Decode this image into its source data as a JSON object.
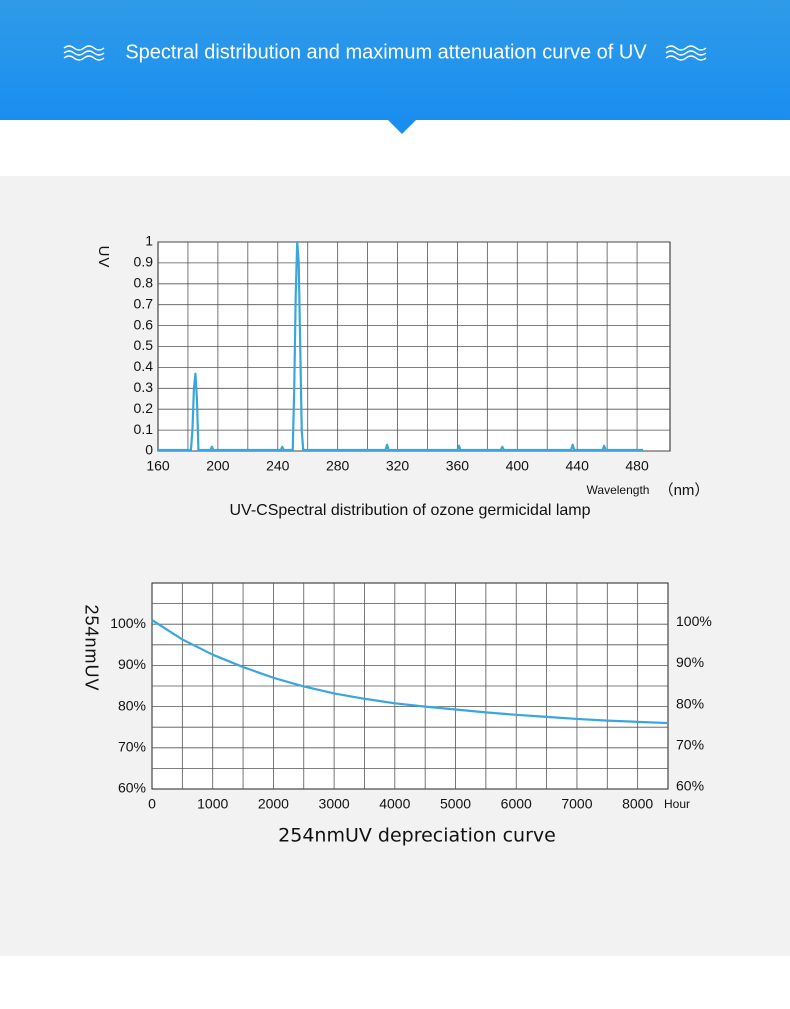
{
  "header": {
    "title": "Spectral distribution and maximum attenuation curve of UV"
  },
  "chart_data": [
    {
      "type": "line",
      "y_label": "UV",
      "x_label": "Wavelength",
      "x_unit": "（nm）",
      "caption": "UV-CSpectral distribution of ozone germicidal lamp",
      "color": "#3aa6de",
      "grid": true,
      "xlim": [
        160,
        502
      ],
      "ylim": [
        0,
        1
      ],
      "xticks": [
        160,
        200,
        240,
        280,
        320,
        360,
        400,
        440,
        480
      ],
      "xgrid": [
        180,
        200,
        220,
        240,
        260,
        280,
        300,
        320,
        340,
        360,
        380,
        400,
        420,
        440,
        460,
        480
      ],
      "yticks": [
        0,
        0.1,
        0.2,
        0.3,
        0.4,
        0.5,
        0.6,
        0.7,
        0.8,
        0.9,
        1
      ],
      "series": [
        {
          "x": [
            160,
            182,
            183,
            184,
            185,
            186,
            187,
            195,
            196,
            197,
            242,
            243,
            244,
            250,
            251,
            252,
            253,
            254,
            255,
            256,
            257,
            312,
            313,
            314,
            360,
            361,
            362,
            389,
            390,
            391,
            436,
            437,
            438,
            457,
            458,
            459,
            484
          ],
          "values": [
            0.005,
            0.005,
            0.1,
            0.3,
            0.37,
            0.25,
            0.005,
            0.005,
            0.02,
            0.005,
            0.005,
            0.02,
            0.005,
            0.005,
            0.3,
            0.75,
            1,
            0.9,
            0.5,
            0.1,
            0.005,
            0.005,
            0.03,
            0.005,
            0.005,
            0.025,
            0.005,
            0.005,
            0.02,
            0.005,
            0.005,
            0.03,
            0.005,
            0.005,
            0.025,
            0.005,
            0.005
          ]
        }
      ]
    },
    {
      "type": "line",
      "y_label": "254nmUV",
      "x_unit": "Hour",
      "caption": "254nmUV depreciation curve",
      "color": "#3aa6de",
      "grid": true,
      "xlim": [
        0,
        8500
      ],
      "ylim": [
        60,
        110
      ],
      "y2lim": [
        60,
        110
      ],
      "xticks": [
        0,
        1000,
        2000,
        3000,
        4000,
        5000,
        6000,
        7000,
        8000
      ],
      "xgrid": [
        500,
        1000,
        1500,
        2000,
        2500,
        3000,
        3500,
        4000,
        4500,
        5000,
        5500,
        6000,
        6500,
        7000,
        7500,
        8000
      ],
      "yticks": [
        {
          "value": 60,
          "label": "60%"
        },
        {
          "value": 70,
          "label": "70%"
        },
        {
          "value": 80,
          "label": "80%"
        },
        {
          "value": 90,
          "label": "90%"
        },
        {
          "value": 100,
          "label": "100%"
        }
      ],
      "ygrid": [
        65,
        70,
        75,
        80,
        85,
        90,
        95,
        100,
        105
      ],
      "y2ticks": [
        {
          "value": 60,
          "label": "60%"
        },
        {
          "value": 70,
          "label": "70%"
        },
        {
          "value": 80,
          "label": "80%"
        },
        {
          "value": 90,
          "label": "90%"
        },
        {
          "value": 100,
          "label": "100%"
        }
      ],
      "series": [
        {
          "x": [
            0,
            500,
            1000,
            1500,
            2000,
            2500,
            3000,
            3500,
            4000,
            4500,
            5000,
            5500,
            6000,
            6500,
            7000,
            7500,
            8000,
            8500
          ],
          "values": [
            101,
            96.3,
            92.6,
            89.6,
            87,
            84.9,
            83.2,
            81.9,
            80.8,
            80,
            79.3,
            78.6,
            78,
            77.5,
            77,
            76.6,
            76.3,
            76
          ]
        }
      ]
    }
  ]
}
